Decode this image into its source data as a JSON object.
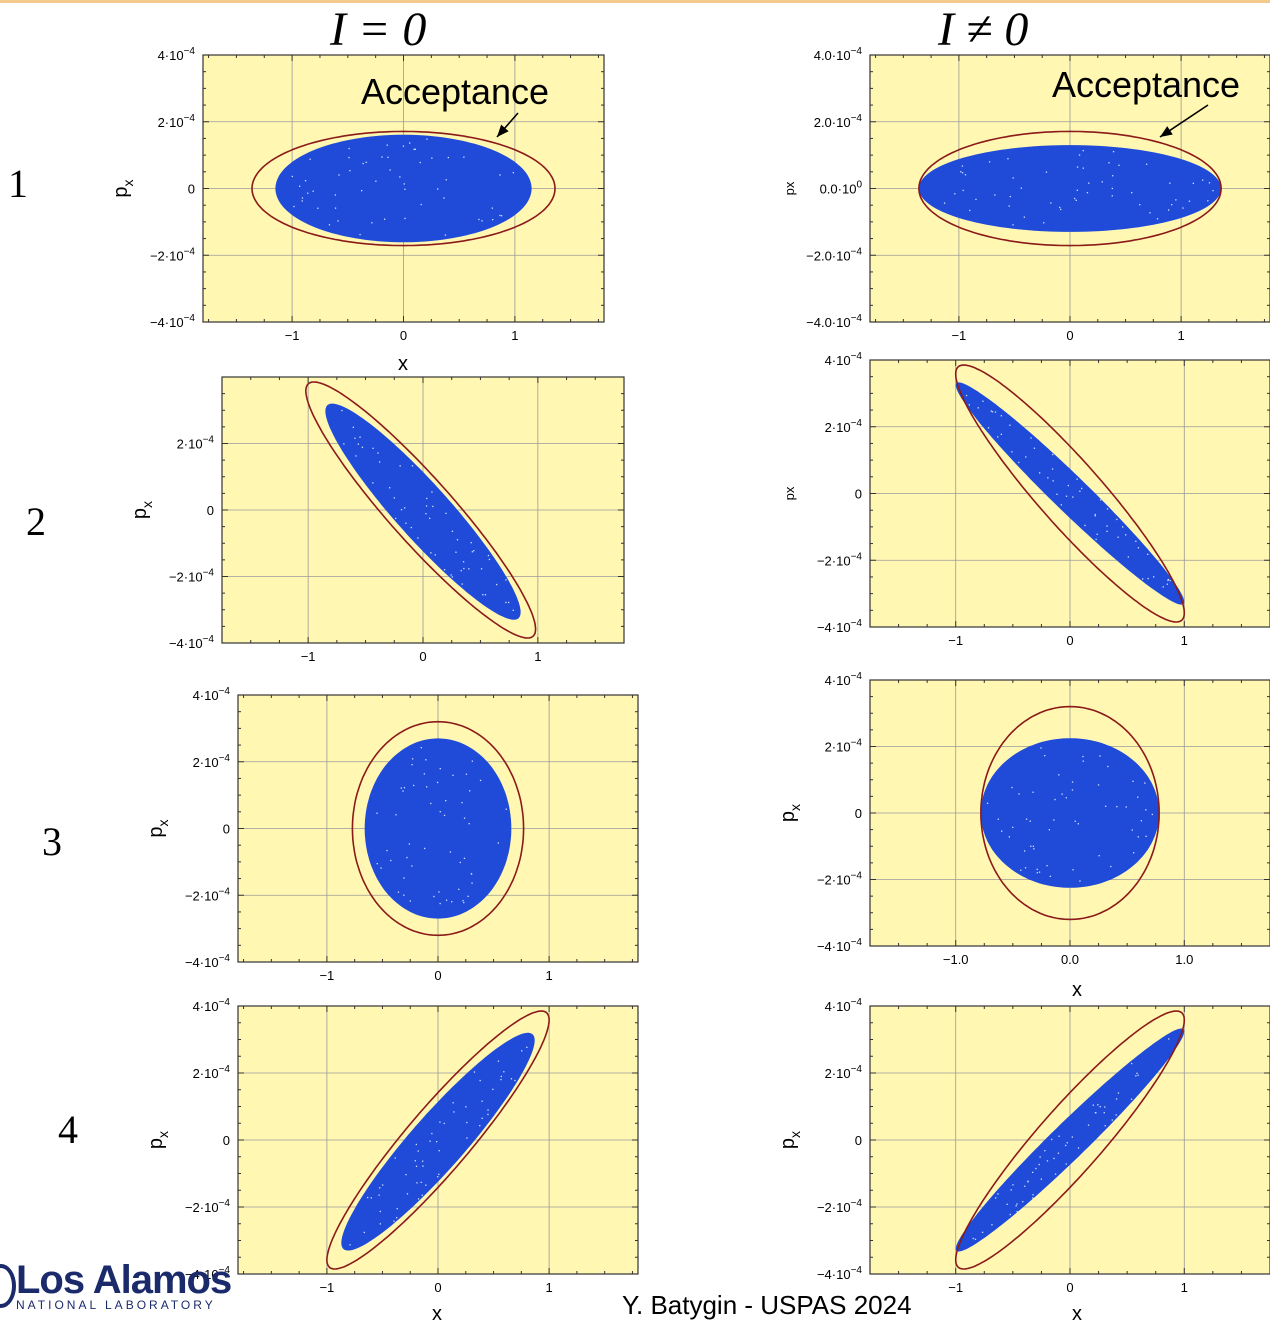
{
  "headers": {
    "left": "I = 0",
    "right": "I ≠ 0"
  },
  "rows": [
    "1",
    "2",
    "3",
    "4"
  ],
  "footer": {
    "credit": "Y. Batygin - USPAS 2024"
  },
  "logo": {
    "main": "Los Alamos",
    "sub": "NATIONAL LABORATORY"
  },
  "colors": {
    "background": "#fff7b2",
    "beam": "#1f4bd8",
    "acceptance": "#8b1a1a",
    "grid": "#9a9a9a"
  },
  "chart_data": [
    {
      "type": "scatter",
      "panel": "row1-left",
      "xlabel": "x",
      "ylabel": "p_x",
      "xlim": [
        -1.8,
        1.8
      ],
      "ylim": [
        -0.0004,
        0.0004
      ],
      "xticks": [
        "-1",
        "0",
        "1"
      ],
      "yticks": [
        "-4·10^-4",
        "-2·10^-4",
        "0",
        "2·10^-4",
        "4·10^-4"
      ],
      "annotation": "Acceptance",
      "acceptance": {
        "center": [
          0,
          0
        ],
        "x_extent": 1.36,
        "p_extent": 0.000171,
        "corr": 0
      },
      "beam": {
        "center": [
          0,
          0
        ],
        "x_extent": 1.15,
        "p_extent": 0.000161,
        "corr": 0
      }
    },
    {
      "type": "scatter",
      "panel": "row1-right",
      "xlabel": "",
      "ylabel": "px",
      "xlim": [
        -1.8,
        1.8
      ],
      "ylim": [
        -0.0004,
        0.0004
      ],
      "xticks": [
        "-1",
        "0",
        "1"
      ],
      "yticks": [
        "-4.0·10^-4",
        "-2.0·10^-4",
        "0.0·10^0",
        "2.0·10^-4",
        "4.0·10^-4"
      ],
      "annotation": "Acceptance",
      "acceptance": {
        "center": [
          0,
          0
        ],
        "x_extent": 1.36,
        "p_extent": 0.000171,
        "corr": 0
      },
      "beam": {
        "center": [
          0,
          0
        ],
        "x_extent": 1.36,
        "p_extent": 0.00013,
        "corr": 0
      }
    },
    {
      "type": "scatter",
      "panel": "row2-left",
      "xlabel": "",
      "ylabel": "p_x",
      "xlim": [
        -1.75,
        1.75
      ],
      "ylim": [
        -0.0004,
        0.0004
      ],
      "xticks": [
        "-1",
        "0",
        "1"
      ],
      "yticks": [
        "-4·10^-4",
        "-2·10^-4",
        "0",
        "2·10^-4"
      ],
      "acceptance": {
        "center": [
          -0.02,
          0
        ],
        "x_extent": 1.0,
        "p_extent": 0.000385,
        "corr": -0.93
      },
      "beam": {
        "center": [
          0,
          -5e-06
        ],
        "x_extent": 0.85,
        "p_extent": 0.000325,
        "corr": -0.93
      }
    },
    {
      "type": "scatter",
      "panel": "row2-right",
      "xlabel": "",
      "ylabel": "px",
      "xlim": [
        -1.75,
        1.75
      ],
      "ylim": [
        -0.0004,
        0.0004
      ],
      "xticks": [
        "-1",
        "0",
        "1"
      ],
      "yticks": [
        "-4·10^-4",
        "-2·10^-4",
        "0",
        "2·10^-4",
        "4·10^-4"
      ],
      "acceptance": {
        "center": [
          0,
          0
        ],
        "x_extent": 1.0,
        "p_extent": 0.000385,
        "corr": -0.93
      },
      "beam": {
        "center": [
          0,
          0
        ],
        "x_extent": 1.0,
        "p_extent": 0.000333,
        "corr": -0.975
      }
    },
    {
      "type": "scatter",
      "panel": "row3-left",
      "xlabel": "",
      "ylabel": "p_x",
      "xlim": [
        -1.8,
        1.8
      ],
      "ylim": [
        -0.0004,
        0.0004
      ],
      "xticks": [
        "-1",
        "0",
        "1"
      ],
      "yticks": [
        "-4·10^-4",
        "-2·10^-4",
        "0",
        "2·10^-4",
        "4·10^-4"
      ],
      "acceptance": {
        "center": [
          0,
          0
        ],
        "x_extent": 0.77,
        "p_extent": 0.00032,
        "corr": 0
      },
      "beam": {
        "center": [
          0,
          0
        ],
        "x_extent": 0.66,
        "p_extent": 0.00027,
        "corr": 0
      }
    },
    {
      "type": "scatter",
      "panel": "row3-right",
      "xlabel": "x",
      "ylabel": "p_x",
      "xlim": [
        -1.75,
        1.75
      ],
      "ylim": [
        -0.0004,
        0.0004
      ],
      "xticks": [
        "-1.0",
        "0.0",
        "1.0"
      ],
      "yticks": [
        "-4·10^-4",
        "-2·10^-4",
        "0",
        "2·10^-4",
        "4·10^-4"
      ],
      "acceptance": {
        "center": [
          0,
          0
        ],
        "x_extent": 0.78,
        "p_extent": 0.00032,
        "corr": 0
      },
      "beam": {
        "center": [
          0,
          0
        ],
        "x_extent": 0.78,
        "p_extent": 0.000225,
        "corr": 0
      }
    },
    {
      "type": "scatter",
      "panel": "row4-left",
      "xlabel": "x",
      "ylabel": "p_x",
      "xlim": [
        -1.8,
        1.8
      ],
      "ylim": [
        -0.0004,
        0.0004
      ],
      "xticks": [
        "-1",
        "0",
        "1"
      ],
      "yticks": [
        "-4·10^-4",
        "-2·10^-4",
        "0",
        "2·10^-4",
        "4·10^-4"
      ],
      "acceptance": {
        "center": [
          0,
          0
        ],
        "x_extent": 1.0,
        "p_extent": 0.000385,
        "corr": 0.93
      },
      "beam": {
        "center": [
          0,
          -5e-06
        ],
        "x_extent": 0.87,
        "p_extent": 0.000325,
        "corr": 0.93
      }
    },
    {
      "type": "scatter",
      "panel": "row4-right",
      "xlabel": "x",
      "ylabel": "p_x",
      "xlim": [
        -1.75,
        1.75
      ],
      "ylim": [
        -0.0004,
        0.0004
      ],
      "xticks": [
        "-1",
        "0",
        "1"
      ],
      "yticks": [
        "-4·10^-4",
        "-2·10^-4",
        "0",
        "2·10^-4",
        "4·10^-4"
      ],
      "acceptance": {
        "center": [
          0,
          0
        ],
        "x_extent": 1.0,
        "p_extent": 0.000385,
        "corr": 0.93
      },
      "beam": {
        "center": [
          0,
          0
        ],
        "x_extent": 1.0,
        "p_extent": 0.000333,
        "corr": 0.975
      }
    }
  ]
}
